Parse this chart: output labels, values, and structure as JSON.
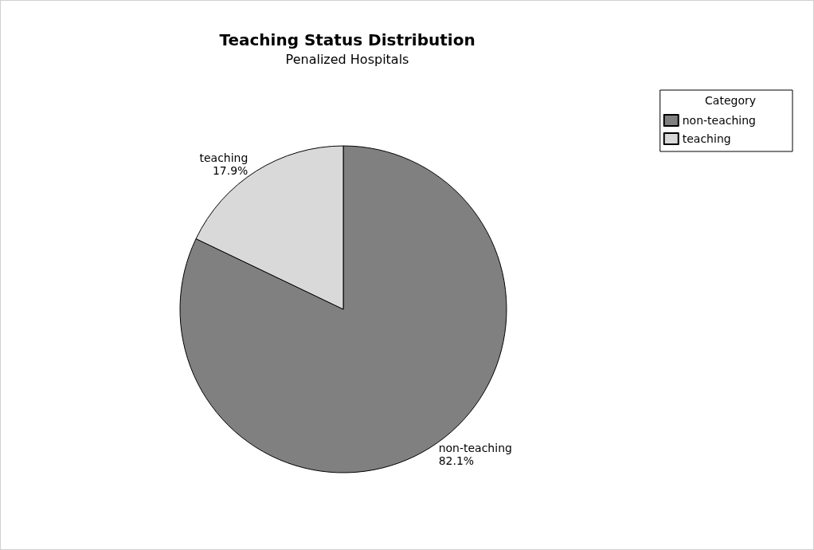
{
  "chart_data": {
    "type": "pie",
    "title": "Teaching Status Distribution",
    "subtitle": "Penalized Hospitals",
    "legend_title": "Category",
    "categories": [
      "non-teaching",
      "teaching"
    ],
    "values": [
      82.1,
      17.9
    ],
    "colors": [
      "#808080",
      "#d9d9d9"
    ],
    "value_labels": [
      "82.1%",
      "17.9%"
    ],
    "legend": "top right"
  }
}
